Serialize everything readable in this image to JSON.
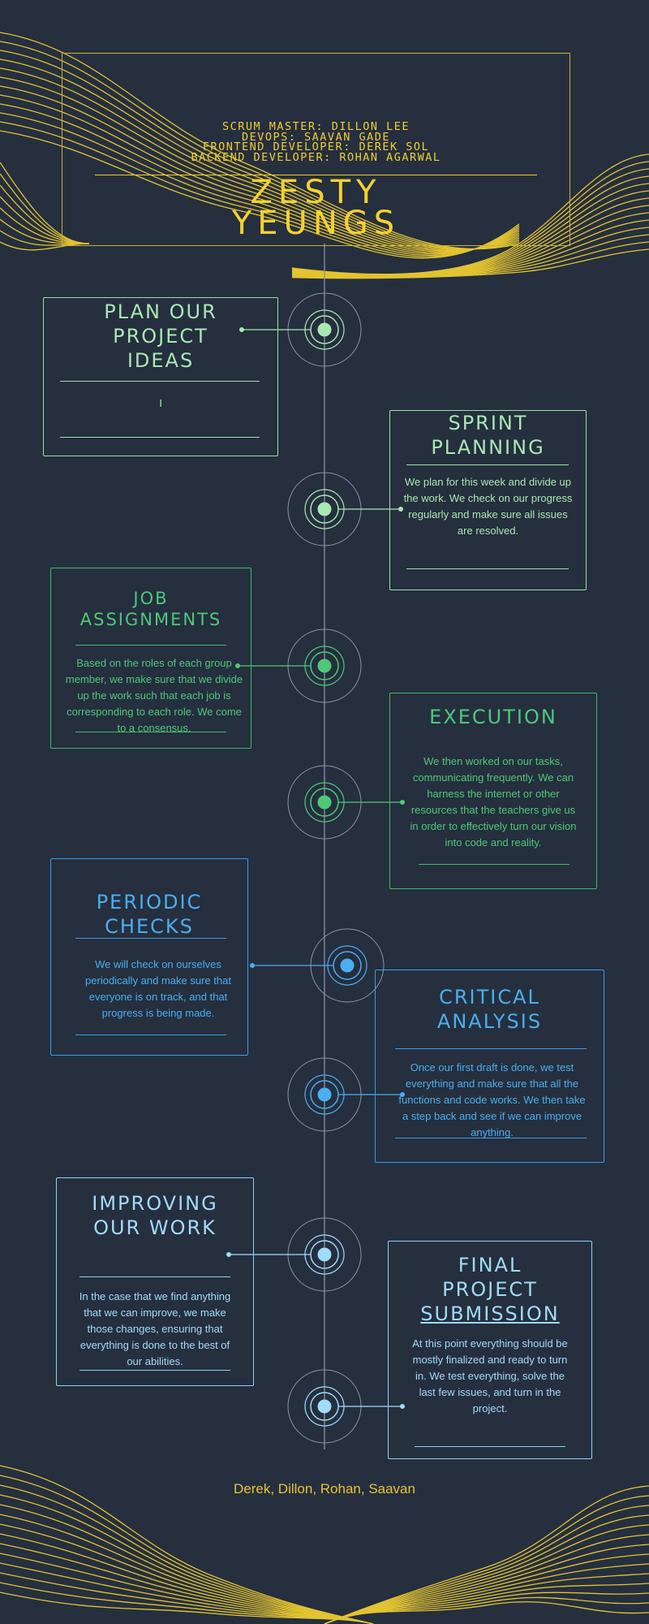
{
  "header": {
    "roles": [
      "SCRUM MASTER: DILLON LEE",
      "DEVOPS: SAAVAN GADE",
      "FRONTEND DEVELOPER: DEREK SOL",
      "BACKEND DEVELOPER: ROHAN AGARWAL"
    ],
    "title_line1": "ZESTY",
    "title_line2": "YEUNGS"
  },
  "steps": [
    {
      "title": [
        "PLAN OUR",
        "PROJECT",
        "IDEAS"
      ],
      "body": "I",
      "color": "#a8e8b2"
    },
    {
      "title": [
        "SPRINT",
        "PLANNING"
      ],
      "body": "We plan for this week and divide up the work. We check on our progress regularly and make sure all issues are resolved.",
      "color": "#a8e8b2"
    },
    {
      "title": [
        "JOB",
        "ASSIGNMENTS"
      ],
      "body": "Based on the roles of each group member, we make sure that we divide up the work such that each job is corresponding to each role. We come to a consensus.",
      "color": "#4ec878"
    },
    {
      "title": [
        "EXECUTION"
      ],
      "body": "We then worked on our tasks, communicating frequently. We can harness the internet or other resources that the teachers give us in order to effectively turn our vision into code and reality.",
      "color": "#4ec878"
    },
    {
      "title": [
        "PERIODIC",
        "CHECKS"
      ],
      "body": "We will check on ourselves periodically and make sure that everyone is on track, and that progress is being made.",
      "color": "#4aaef0"
    },
    {
      "title": [
        "CRITICAL",
        "ANALYSIS"
      ],
      "body": "Once our first draft is done, we test everything and make sure that all the functions and code works. We then take a step back and see if we can improve anything.",
      "color": "#4aaef0"
    },
    {
      "title": [
        "IMPROVING",
        "OUR WORK"
      ],
      "body": "In the case that we find anything that we can improve, we make those changes, ensuring that everything is done to the best of our abilities.",
      "color": "#a0dbf8"
    },
    {
      "title": [
        "FINAL",
        "PROJECT",
        "SUBMISSION"
      ],
      "body": "At this point everything should be mostly finalized and ready to turn in. We test everything, solve the last few issues, and turn in the project.",
      "color": "#a0dbf8"
    }
  ],
  "footer": {
    "names": "Derek, Dillon, Rohan, Saavan"
  },
  "colors": {
    "background": "#252f3e",
    "accent_yellow": "#f3cd34",
    "timeline": "#8a94a6"
  }
}
